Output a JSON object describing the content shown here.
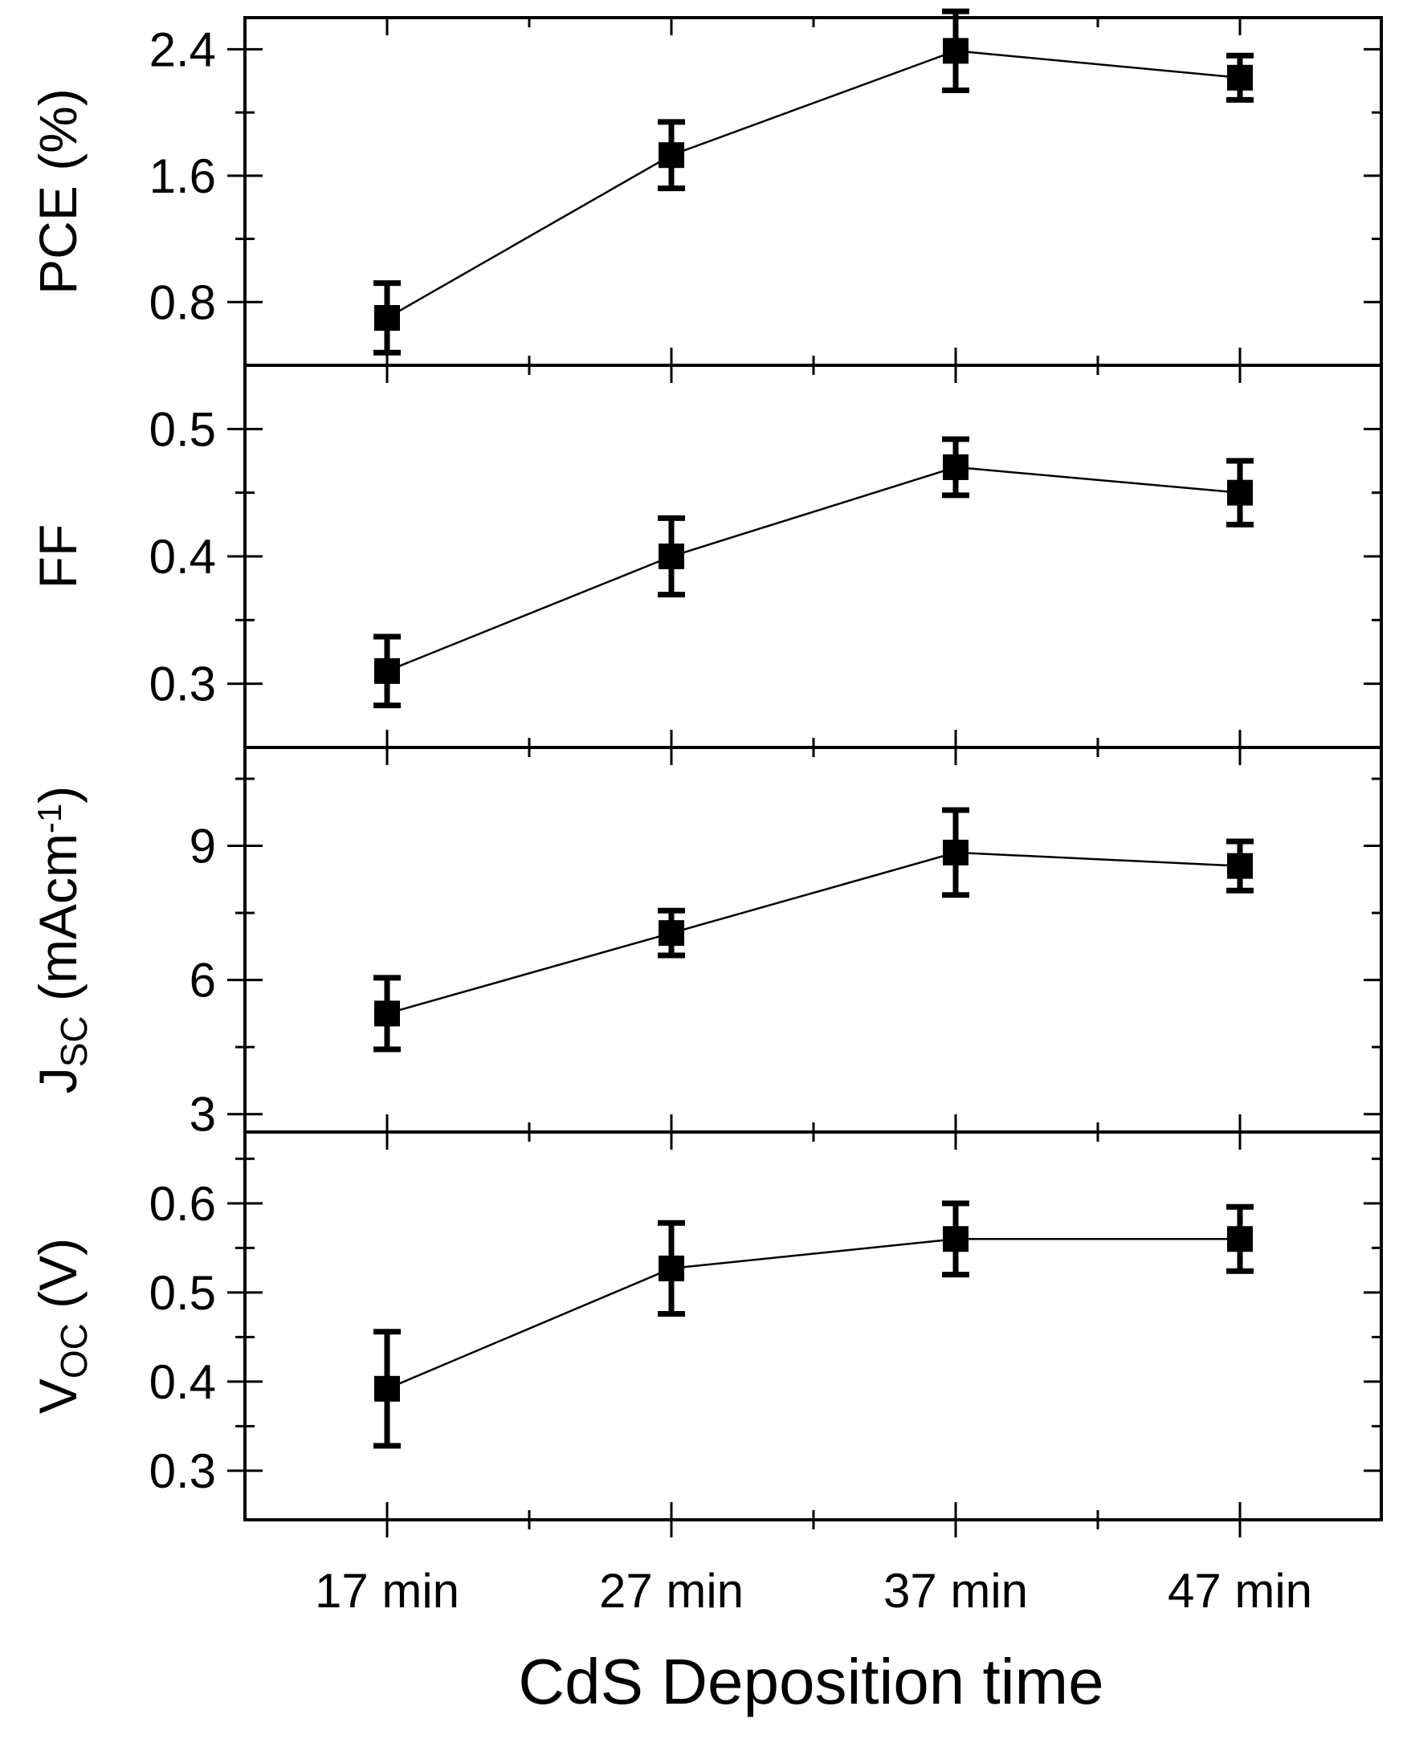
{
  "chart_data": {
    "type": "line",
    "layout": "stacked-panels",
    "shared_x": {
      "categories": [
        "17 min",
        "27 min",
        "37 min",
        "47 min"
      ],
      "xlabel": "CdS Deposition time"
    },
    "panels": [
      {
        "id": "pce",
        "ylabel": "PCE (%)",
        "ylabel_parts": [
          {
            "text": "PCE (%)",
            "sub": false
          }
        ],
        "ylim": [
          0.4,
          2.6
        ],
        "yticks": [
          0.8,
          1.6,
          2.4
        ],
        "ytick_labels": [
          "0.8",
          "1.6",
          "2.4"
        ],
        "minor_yticks": [
          0.4,
          1.2,
          2.0
        ],
        "values": [
          0.7,
          1.73,
          2.39,
          2.22
        ],
        "errors": [
          0.22,
          0.21,
          0.25,
          0.14
        ]
      },
      {
        "id": "ff",
        "ylabel": "FF",
        "ylabel_parts": [
          {
            "text": "FF",
            "sub": false
          }
        ],
        "ylim": [
          0.25,
          0.55
        ],
        "yticks": [
          0.3,
          0.4,
          0.5
        ],
        "ytick_labels": [
          "0.3",
          "0.4",
          "0.5"
        ],
        "minor_yticks": [
          0.25,
          0.35,
          0.45
        ],
        "values": [
          0.31,
          0.4,
          0.47,
          0.45
        ],
        "errors": [
          0.027,
          0.03,
          0.022,
          0.025
        ]
      },
      {
        "id": "jsc",
        "ylabel": "JSC (mAcm-1)",
        "ylabel_parts": [
          {
            "text": "J",
            "sub": false
          },
          {
            "text": "SC",
            "sub": true
          },
          {
            "text": " (mAcm",
            "sub": false
          },
          {
            "text": "-1",
            "sup": true
          },
          {
            "text": ")",
            "sub": false
          }
        ],
        "ylim": [
          2.6,
          11.2
        ],
        "yticks": [
          3,
          6,
          9
        ],
        "ytick_labels": [
          "3",
          "6",
          "9"
        ],
        "minor_yticks": [
          4.5,
          7.5,
          10.5
        ],
        "values": [
          5.25,
          7.05,
          8.85,
          8.55
        ],
        "errors": [
          0.8,
          0.5,
          0.95,
          0.55
        ]
      },
      {
        "id": "voc",
        "ylabel": "VOC (V)",
        "ylabel_parts": [
          {
            "text": "V",
            "sub": false
          },
          {
            "text": "OC",
            "sub": true
          },
          {
            "text": " (V)",
            "sub": false
          }
        ],
        "ylim": [
          0.245,
          0.68
        ],
        "yticks": [
          0.3,
          0.4,
          0.5,
          0.6
        ],
        "ytick_labels": [
          "0.3",
          "0.4",
          "0.5",
          "0.6"
        ],
        "minor_yticks": [
          0.35,
          0.45,
          0.55,
          0.65
        ],
        "values": [
          0.392,
          0.527,
          0.56,
          0.56
        ],
        "errors": [
          0.064,
          0.051,
          0.04,
          0.036
        ]
      }
    ]
  }
}
